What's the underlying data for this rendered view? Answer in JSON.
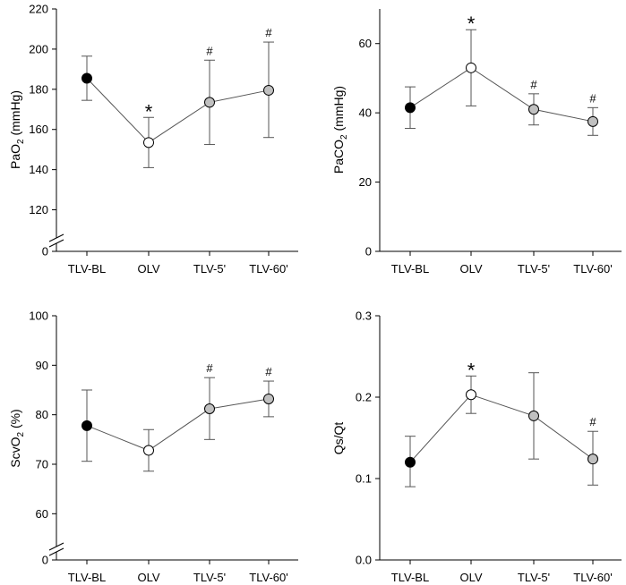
{
  "figure_title": "",
  "chart_data": [
    {
      "type": "line",
      "title": "",
      "ylabel_main": "PaO",
      "ylabel_sub": "2",
      "ylabel_rest": " (mmHg)",
      "xlabel": "",
      "categories": [
        "TLV-BL",
        "OLV",
        "TLV-5'",
        "TLV-60'"
      ],
      "values": [
        185.5,
        153.5,
        173.5,
        179.5
      ],
      "err_low": [
        174.5,
        141,
        152.5,
        156
      ],
      "err_high": [
        196.5,
        166,
        194.5,
        203.5
      ],
      "marker_fill": [
        "#000000",
        "#ffffff",
        "#c0c0c0",
        "#c0c0c0"
      ],
      "annotations": [
        "",
        "*",
        "#",
        "#"
      ],
      "ylim": [
        110,
        220
      ],
      "ticks": [
        120,
        140,
        160,
        180,
        200,
        220
      ],
      "tick_labels": [
        "120",
        "140",
        "160",
        "180",
        "200",
        "220"
      ],
      "axis_break": true,
      "break_label": "0",
      "legend": "none"
    },
    {
      "type": "line",
      "title": "",
      "ylabel_main": "PaCO",
      "ylabel_sub": "2",
      "ylabel_rest": " (mmHg)",
      "xlabel": "",
      "categories": [
        "TLV-BL",
        "OLV",
        "TLV-5'",
        "TLV-60'"
      ],
      "values": [
        41.5,
        53,
        41,
        37.5
      ],
      "err_low": [
        35.5,
        42,
        36.5,
        33.5
      ],
      "err_high": [
        47.5,
        64,
        45.5,
        41.5
      ],
      "marker_fill": [
        "#000000",
        "#ffffff",
        "#c0c0c0",
        "#c0c0c0"
      ],
      "annotations": [
        "",
        "*",
        "#",
        "#"
      ],
      "ylim": [
        0,
        70
      ],
      "ticks": [
        0,
        20,
        40,
        60
      ],
      "tick_labels": [
        "0",
        "20",
        "40",
        "60"
      ],
      "axis_break": false,
      "legend": "none"
    },
    {
      "type": "line",
      "title": "",
      "ylabel_main": "ScvO",
      "ylabel_sub": "2",
      "ylabel_rest": " (%)",
      "xlabel": "",
      "categories": [
        "TLV-BL",
        "OLV",
        "TLV-5'",
        "TLV-60'"
      ],
      "values": [
        77.8,
        72.8,
        81.2,
        83.2
      ],
      "err_low": [
        70.6,
        68.6,
        75,
        79.6
      ],
      "err_high": [
        85,
        77,
        87.5,
        86.8
      ],
      "marker_fill": [
        "#000000",
        "#ffffff",
        "#c0c0c0",
        "#c0c0c0"
      ],
      "annotations": [
        "",
        "",
        "#",
        "#"
      ],
      "ylim": [
        55,
        100
      ],
      "ticks": [
        60,
        70,
        80,
        90,
        100
      ],
      "tick_labels": [
        "60",
        "70",
        "80",
        "90",
        "100"
      ],
      "axis_break": true,
      "break_label": "0",
      "legend": "none"
    },
    {
      "type": "line",
      "title": "",
      "ylabel_main": "Qs/Qt",
      "ylabel_sub": "",
      "ylabel_rest": "",
      "xlabel": "",
      "categories": [
        "TLV-BL",
        "OLV",
        "TLV-5'",
        "TLV-60'"
      ],
      "values": [
        0.12,
        0.203,
        0.177,
        0.124
      ],
      "err_low": [
        0.09,
        0.18,
        0.124,
        0.092
      ],
      "err_high": [
        0.152,
        0.226,
        0.23,
        0.158
      ],
      "marker_fill": [
        "#000000",
        "#ffffff",
        "#c0c0c0",
        "#c0c0c0"
      ],
      "annotations": [
        "",
        "*",
        "",
        "#"
      ],
      "ylim": [
        0,
        0.3
      ],
      "ticks": [
        0,
        0.1,
        0.2,
        0.3
      ],
      "tick_labels": [
        "0.0",
        "0.1",
        "0.2",
        "0.3"
      ],
      "axis_break": false,
      "legend": "none"
    }
  ]
}
